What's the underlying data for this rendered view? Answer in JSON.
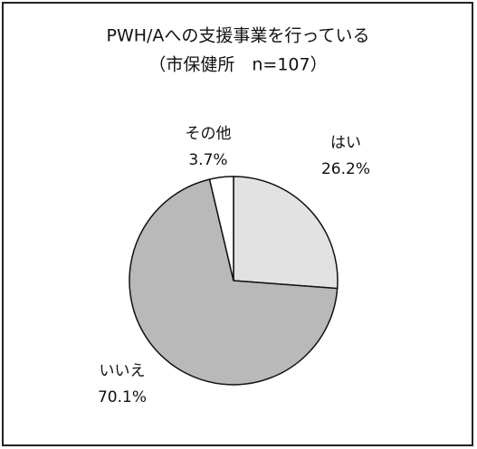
{
  "chart_data": {
    "type": "pie",
    "title": "PWH/Aへの支援事業を行っている",
    "subtitle": "（市保健所　n=107）",
    "categories": [
      "はい",
      "いいえ",
      "その他"
    ],
    "values": [
      26.2,
      70.1,
      3.7
    ],
    "value_labels": [
      "26.2%",
      "70.1%",
      "3.7%"
    ],
    "colors": [
      "#e2e2e2",
      "#b9b9b9",
      "#ffffff"
    ]
  }
}
